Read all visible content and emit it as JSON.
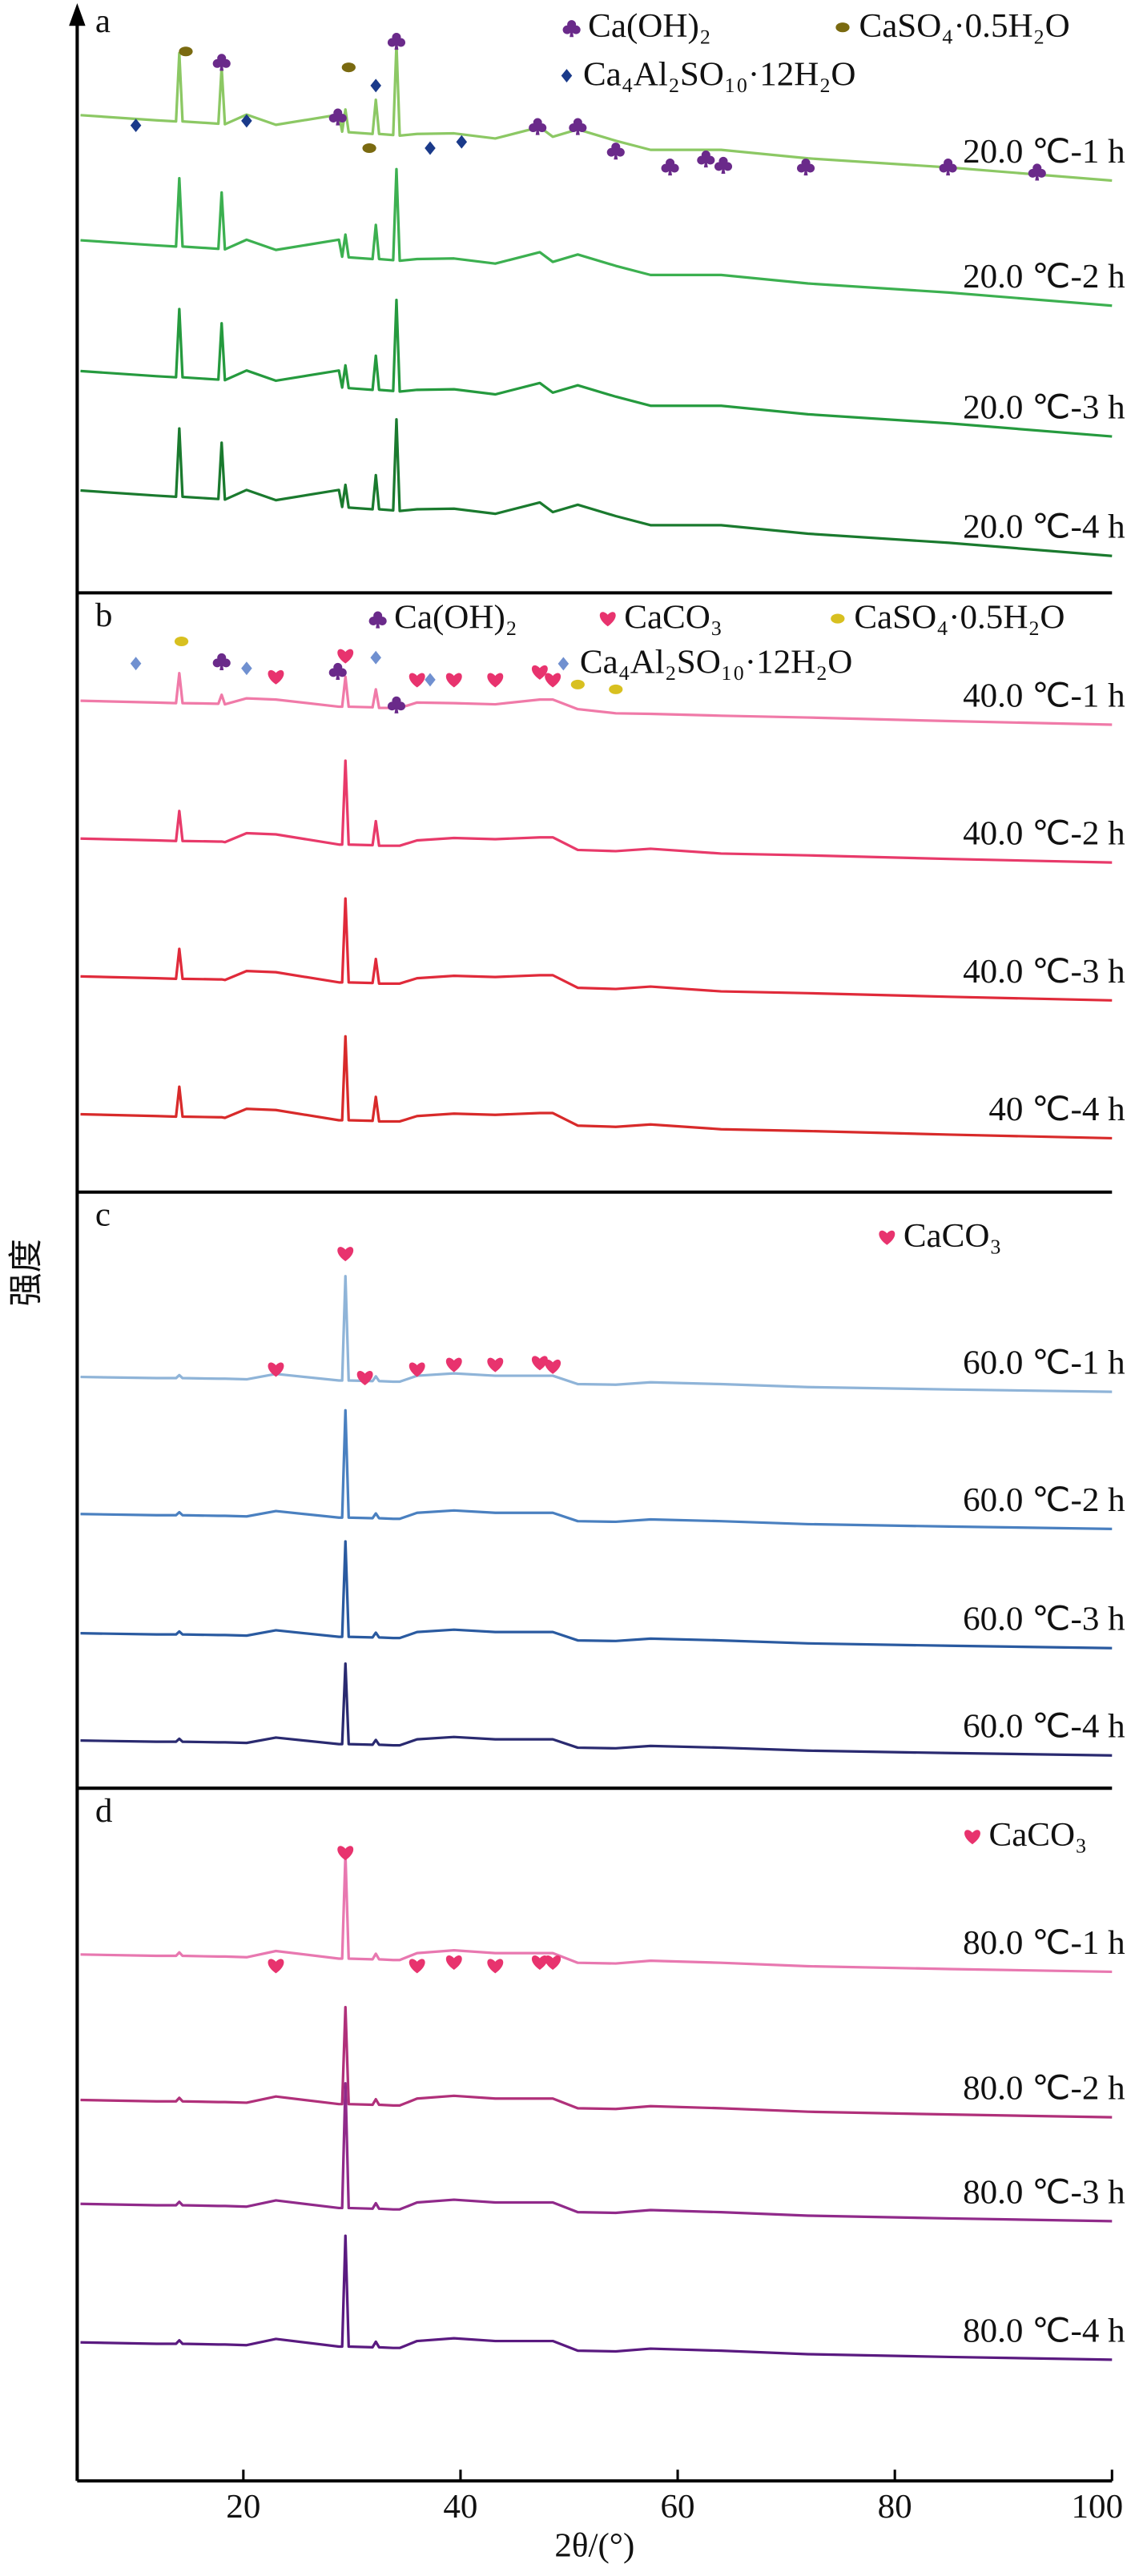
{
  "chart_data": [
    {
      "type": "line",
      "label": "a",
      "ylabel": "强度",
      "xlim": [
        5,
        100
      ],
      "ylim": [
        0,
        100
      ],
      "x": [
        5,
        12,
        13.8,
        14.1,
        14.4,
        17.7,
        18,
        18.3,
        20.3,
        23,
        28.8,
        29.1,
        29.4,
        29.7,
        31.9,
        32.2,
        32.5,
        33.8,
        34.1,
        34.4,
        36,
        39.4,
        43.2,
        47.3,
        48.5,
        50.8,
        54.3,
        57.5,
        64,
        72,
        85,
        100
      ],
      "series": [
        {
          "name": "20.0 ℃-1 h",
          "color": "#8cc864",
          "values": [
            84,
            83.1,
            82.9,
            94.9,
            82.9,
            82.5,
            92.4,
            82.4,
            84.1,
            82.3,
            84.1,
            81.1,
            85,
            81,
            80.7,
            86.7,
            80.7,
            80.5,
            96.5,
            80.4,
            80.7,
            80.8,
            79.9,
            81.9,
            80.2,
            81.5,
            79.5,
            77.9,
            77.9,
            76.4,
            74.8,
            72.5
          ]
        },
        {
          "name": "20.0 ℃-2 h",
          "color": "#3cb050",
          "values": [
            62,
            61.1,
            60.9,
            72.9,
            60.9,
            60.5,
            70.4,
            60.4,
            62.1,
            60.3,
            62.1,
            59.1,
            63,
            59,
            58.7,
            64.7,
            58.7,
            58.5,
            74.5,
            58.4,
            58.7,
            58.8,
            57.9,
            59.9,
            58.2,
            59.5,
            57.5,
            55.9,
            55.9,
            54.4,
            52.8,
            50.5
          ]
        },
        {
          "name": "20.0 ℃-3 h",
          "color": "#259a3e",
          "values": [
            39,
            38.1,
            37.9,
            49.9,
            37.9,
            37.5,
            47.4,
            37.4,
            39.1,
            37.3,
            39.1,
            36.1,
            40,
            36,
            35.7,
            41.7,
            35.7,
            35.5,
            51.5,
            35.4,
            35.7,
            35.8,
            34.9,
            36.9,
            35.2,
            36.5,
            34.5,
            32.9,
            32.9,
            31.4,
            29.8,
            27.5
          ]
        },
        {
          "name": "20.0 ℃-4 h",
          "color": "#1a7a2e",
          "values": [
            18,
            17.1,
            16.9,
            28.9,
            16.9,
            16.5,
            26.4,
            16.4,
            18.1,
            16.3,
            18.1,
            15.1,
            19,
            15,
            14.7,
            20.7,
            14.7,
            14.5,
            30.5,
            14.4,
            14.7,
            14.8,
            13.9,
            15.9,
            14.2,
            15.5,
            13.5,
            11.9,
            11.9,
            10.4,
            8.8,
            6.5
          ]
        }
      ],
      "phases": [
        {
          "name": "Ca(OH)₂",
          "symbol": "club",
          "color": "#6a2a8a",
          "x": [
            18,
            28.7,
            34.1,
            47.1,
            50.8,
            54.3,
            59.3,
            62.6,
            64.2,
            71.8,
            84.9,
            93.1
          ],
          "y": [
            93.5,
            83.9,
            97.2,
            82.2,
            82.2,
            77.9,
            75.1,
            76.5,
            75.4,
            75.1,
            75.1,
            74.2
          ]
        },
        {
          "name": "CaSO₄·0.5H₂O",
          "symbol": "ellipse",
          "color": "#7a6a10",
          "x": [
            14.7,
            29.7,
            31.6
          ],
          "y": [
            95.2,
            92.4,
            78.2
          ]
        },
        {
          "name": "Ca₄Al₂SO₁₀·12H₂O",
          "symbol": "diamond",
          "color": "#1a3a8a",
          "x": [
            10.1,
            20.3,
            32.2,
            37.2,
            40.1
          ],
          "y": [
            82.2,
            83,
            89.2,
            78.2,
            79.3
          ]
        }
      ]
    },
    {
      "type": "line",
      "label": "b",
      "xlim": [
        5,
        100
      ],
      "ylim": [
        0,
        100
      ],
      "x": [
        5,
        12,
        13.8,
        14.1,
        14.4,
        17.7,
        18,
        18.3,
        20.3,
        23,
        28.8,
        29.1,
        29.4,
        29.7,
        31.9,
        32.2,
        32.5,
        33.8,
        34.1,
        34.4,
        36,
        39.4,
        43.2,
        47.3,
        48.5,
        50.8,
        54.3,
        57.5,
        64,
        72,
        85,
        100
      ],
      "series": [
        {
          "name": "40.0 ℃-1 h",
          "color": "#f07aa8",
          "values": [
            82,
            81.7,
            81.6,
            86.6,
            81.6,
            81.5,
            83,
            81.4,
            82.4,
            82.2,
            81,
            81,
            86,
            81,
            80.9,
            83.9,
            80.8,
            80.8,
            81.8,
            80.8,
            81.7,
            81.6,
            81.4,
            82.2,
            82.2,
            80.6,
            79.9,
            79.8,
            79.5,
            79.2,
            78.6,
            78
          ]
        },
        {
          "name": "40.0 ℃-2 h",
          "color": "#e83a6a",
          "values": [
            59,
            58.7,
            58.6,
            63.6,
            58.6,
            58.5,
            58.5,
            58.4,
            59.9,
            59.7,
            58,
            58,
            72,
            58,
            57.9,
            61.9,
            57.8,
            57.8,
            57.8,
            57.8,
            58.7,
            59.1,
            58.9,
            59.2,
            59.2,
            57.1,
            56.9,
            57.3,
            56.5,
            56.2,
            55.6,
            55
          ]
        },
        {
          "name": "40.0 ℃-3 h",
          "color": "#e02a3a",
          "values": [
            36,
            35.7,
            35.6,
            40.6,
            35.6,
            35.5,
            35.5,
            35.4,
            36.9,
            36.7,
            35,
            35,
            49,
            35,
            34.9,
            38.9,
            34.8,
            34.8,
            34.8,
            34.8,
            35.7,
            36.1,
            35.9,
            36.2,
            36.2,
            34.1,
            33.9,
            34.3,
            33.5,
            33.2,
            32.6,
            32
          ]
        },
        {
          "name": "40 ℃-4 h",
          "color": "#d82a2a",
          "values": [
            13,
            12.7,
            12.6,
            17.6,
            12.6,
            12.5,
            12.5,
            12.4,
            13.9,
            13.7,
            12,
            12,
            26,
            12,
            11.9,
            15.9,
            11.8,
            11.8,
            11.8,
            11.8,
            12.7,
            13.1,
            12.9,
            13.2,
            13.2,
            11.1,
            10.9,
            11.3,
            10.5,
            10.2,
            9.6,
            9
          ]
        }
      ],
      "phases": [
        {
          "name": "Ca(OH)₂",
          "symbol": "club",
          "color": "#6a2a8a",
          "x": [
            18,
            28.7,
            34.1
          ],
          "y": [
            88.7,
            87.1,
            81.5
          ]
        },
        {
          "name": "CaCO₃",
          "symbol": "heart",
          "color": "#e8336e",
          "x": [
            23,
            29.4,
            36,
            39.4,
            43.2,
            47.3,
            48.5
          ],
          "y": [
            86,
            89.5,
            85.5,
            85.5,
            85.5,
            86.8,
            85.5
          ]
        },
        {
          "name": "CaSO₄·0.5H₂O",
          "symbol": "ellipse",
          "color": "#d8c020",
          "x": [
            14.3,
            50.8,
            54.3
          ],
          "y": [
            91.9,
            84.7,
            83.9
          ]
        },
        {
          "name": "Ca₄Al₂SO₁₀·12H₂O",
          "symbol": "diamond",
          "color": "#7090d0",
          "x": [
            10.1,
            20.3,
            32.2,
            37.2
          ],
          "y": [
            88.2,
            87.4,
            89.2,
            85.5
          ]
        }
      ]
    },
    {
      "type": "line",
      "label": "c",
      "xlim": [
        5,
        100
      ],
      "ylim": [
        0,
        100
      ],
      "x": [
        5,
        12,
        13.8,
        14.1,
        14.4,
        17.7,
        18,
        18.3,
        20.3,
        23,
        28.8,
        29.1,
        29.4,
        29.7,
        31.9,
        32.2,
        32.5,
        33.8,
        34.1,
        34.4,
        36,
        39.4,
        43.2,
        47.3,
        48.5,
        50.8,
        54.3,
        57.5,
        64,
        72,
        85,
        100
      ],
      "series": [
        {
          "name": "60.0 ℃-1 h",
          "color": "#8fb4d8",
          "values": [
            69,
            68.8,
            68.8,
            69.3,
            68.8,
            68.7,
            68.7,
            68.7,
            68.6,
            69.5,
            68.4,
            68.4,
            85.9,
            68.4,
            68.3,
            69.1,
            68.3,
            68.2,
            68.2,
            68.2,
            69.2,
            69.6,
            69.2,
            69.2,
            69.2,
            67.8,
            67.7,
            68.1,
            67.8,
            67.3,
            66.9,
            66.5
          ]
        },
        {
          "name": "60.0 ℃-2 h",
          "color": "#4a80c0",
          "values": [
            46,
            45.8,
            45.8,
            46.3,
            45.8,
            45.7,
            45.7,
            45.7,
            45.6,
            46.5,
            45.4,
            45.4,
            63.4,
            45.4,
            45.3,
            46.1,
            45.3,
            45.2,
            45.2,
            45.2,
            46.2,
            46.6,
            46.2,
            46.2,
            46.2,
            44.8,
            44.7,
            45.1,
            44.8,
            44.3,
            43.9,
            43.5
          ]
        },
        {
          "name": "60.0 ℃-3 h",
          "color": "#2a5aa0",
          "values": [
            26,
            25.8,
            25.8,
            26.3,
            25.8,
            25.7,
            25.7,
            25.7,
            25.6,
            26.5,
            25.4,
            25.4,
            41.4,
            25.4,
            25.3,
            26.1,
            25.3,
            25.2,
            25.2,
            25.2,
            26.2,
            26.6,
            26.2,
            26.2,
            26.2,
            24.8,
            24.7,
            25.1,
            24.8,
            24.3,
            23.9,
            23.5
          ]
        },
        {
          "name": "60.0 ℃-4 h",
          "color": "#2a2a70",
          "values": [
            8,
            7.8,
            7.8,
            8.3,
            7.8,
            7.7,
            7.7,
            7.7,
            7.6,
            8.5,
            7.4,
            7.4,
            20.9,
            7.4,
            7.3,
            8.1,
            7.3,
            7.2,
            7.2,
            7.2,
            8.2,
            8.6,
            8.2,
            8.2,
            8.2,
            6.8,
            6.7,
            7.1,
            6.8,
            6.3,
            5.9,
            5.5
          ]
        }
      ],
      "phases": [
        {
          "name": "CaCO₃",
          "symbol": "heart",
          "color": "#e8336e",
          "x": [
            23,
            29.4,
            31.2,
            36,
            39.4,
            43.2,
            47.3,
            48.5
          ],
          "y": [
            70.3,
            89.7,
            68.9,
            70.3,
            71.1,
            71.1,
            71.4,
            70.8
          ]
        }
      ]
    },
    {
      "type": "line",
      "label": "d",
      "xlabel": "2θ/(°)",
      "xlim": [
        5,
        100
      ],
      "ylim": [
        0,
        100
      ],
      "xticks": [
        20,
        40,
        60,
        80,
        100
      ],
      "x": [
        5,
        12,
        13.8,
        14.1,
        14.4,
        17.7,
        18,
        18.3,
        20.3,
        23,
        28.8,
        29.1,
        29.4,
        29.7,
        31.9,
        32.2,
        32.5,
        33.8,
        34.1,
        34.4,
        36,
        39.4,
        43.2,
        47.3,
        48.5,
        50.8,
        54.3,
        57.5,
        64,
        72,
        85,
        100
      ],
      "series": [
        {
          "name": "80.0 ℃-1 h",
          "color": "#e878b0",
          "values": [
            76,
            75.8,
            75.8,
            76.3,
            75.8,
            75.7,
            75.7,
            75.7,
            75.6,
            76.5,
            75.4,
            75.4,
            90.4,
            75.4,
            75.3,
            76.1,
            75.3,
            75.2,
            75.2,
            75.2,
            76.2,
            76.6,
            76.2,
            76.2,
            76.2,
            74.8,
            74.7,
            75.1,
            74.8,
            74.3,
            73.9,
            73.5
          ]
        },
        {
          "name": "80.0 ℃-2 h",
          "color": "#b0307a",
          "values": [
            55,
            54.8,
            54.8,
            55.3,
            54.8,
            54.7,
            54.7,
            54.7,
            54.6,
            55.5,
            54.4,
            54.4,
            68.4,
            54.4,
            54.3,
            55.1,
            54.3,
            54.2,
            54.2,
            54.2,
            55.2,
            55.6,
            55.2,
            55.2,
            55.2,
            53.8,
            53.7,
            54.1,
            53.8,
            53.3,
            52.9,
            52.5
          ]
        },
        {
          "name": "80.0 ℃-3 h",
          "color": "#902a8a",
          "values": [
            40,
            39.8,
            39.8,
            40.3,
            39.8,
            39.7,
            39.7,
            39.7,
            39.6,
            40.5,
            39.4,
            39.4,
            57.4,
            39.4,
            39.3,
            40.1,
            39.3,
            39.2,
            39.2,
            39.2,
            40.2,
            40.6,
            40.2,
            40.2,
            40.2,
            38.8,
            38.7,
            39.1,
            38.8,
            38.3,
            37.9,
            37.5
          ]
        },
        {
          "name": "80.0 ℃-4 h",
          "color": "#5a1a80",
          "values": [
            20,
            19.8,
            19.8,
            20.3,
            19.8,
            19.7,
            19.7,
            19.7,
            19.6,
            20.5,
            19.4,
            19.4,
            35.4,
            19.4,
            19.3,
            20.1,
            19.3,
            19.2,
            19.2,
            19.2,
            20.2,
            20.6,
            20.2,
            20.2,
            20.2,
            18.8,
            18.7,
            19.1,
            18.8,
            18.3,
            17.9,
            17.5
          ]
        }
      ],
      "phases": [
        {
          "name": "CaCO₃",
          "symbol": "heart",
          "color": "#e8336e",
          "x": [
            23,
            29.4,
            36,
            39.4,
            43.2,
            47.3,
            48.5
          ],
          "y": [
            74.4,
            90.7,
            74.4,
            74.9,
            74.4,
            74.9,
            74.9
          ]
        }
      ]
    }
  ]
}
